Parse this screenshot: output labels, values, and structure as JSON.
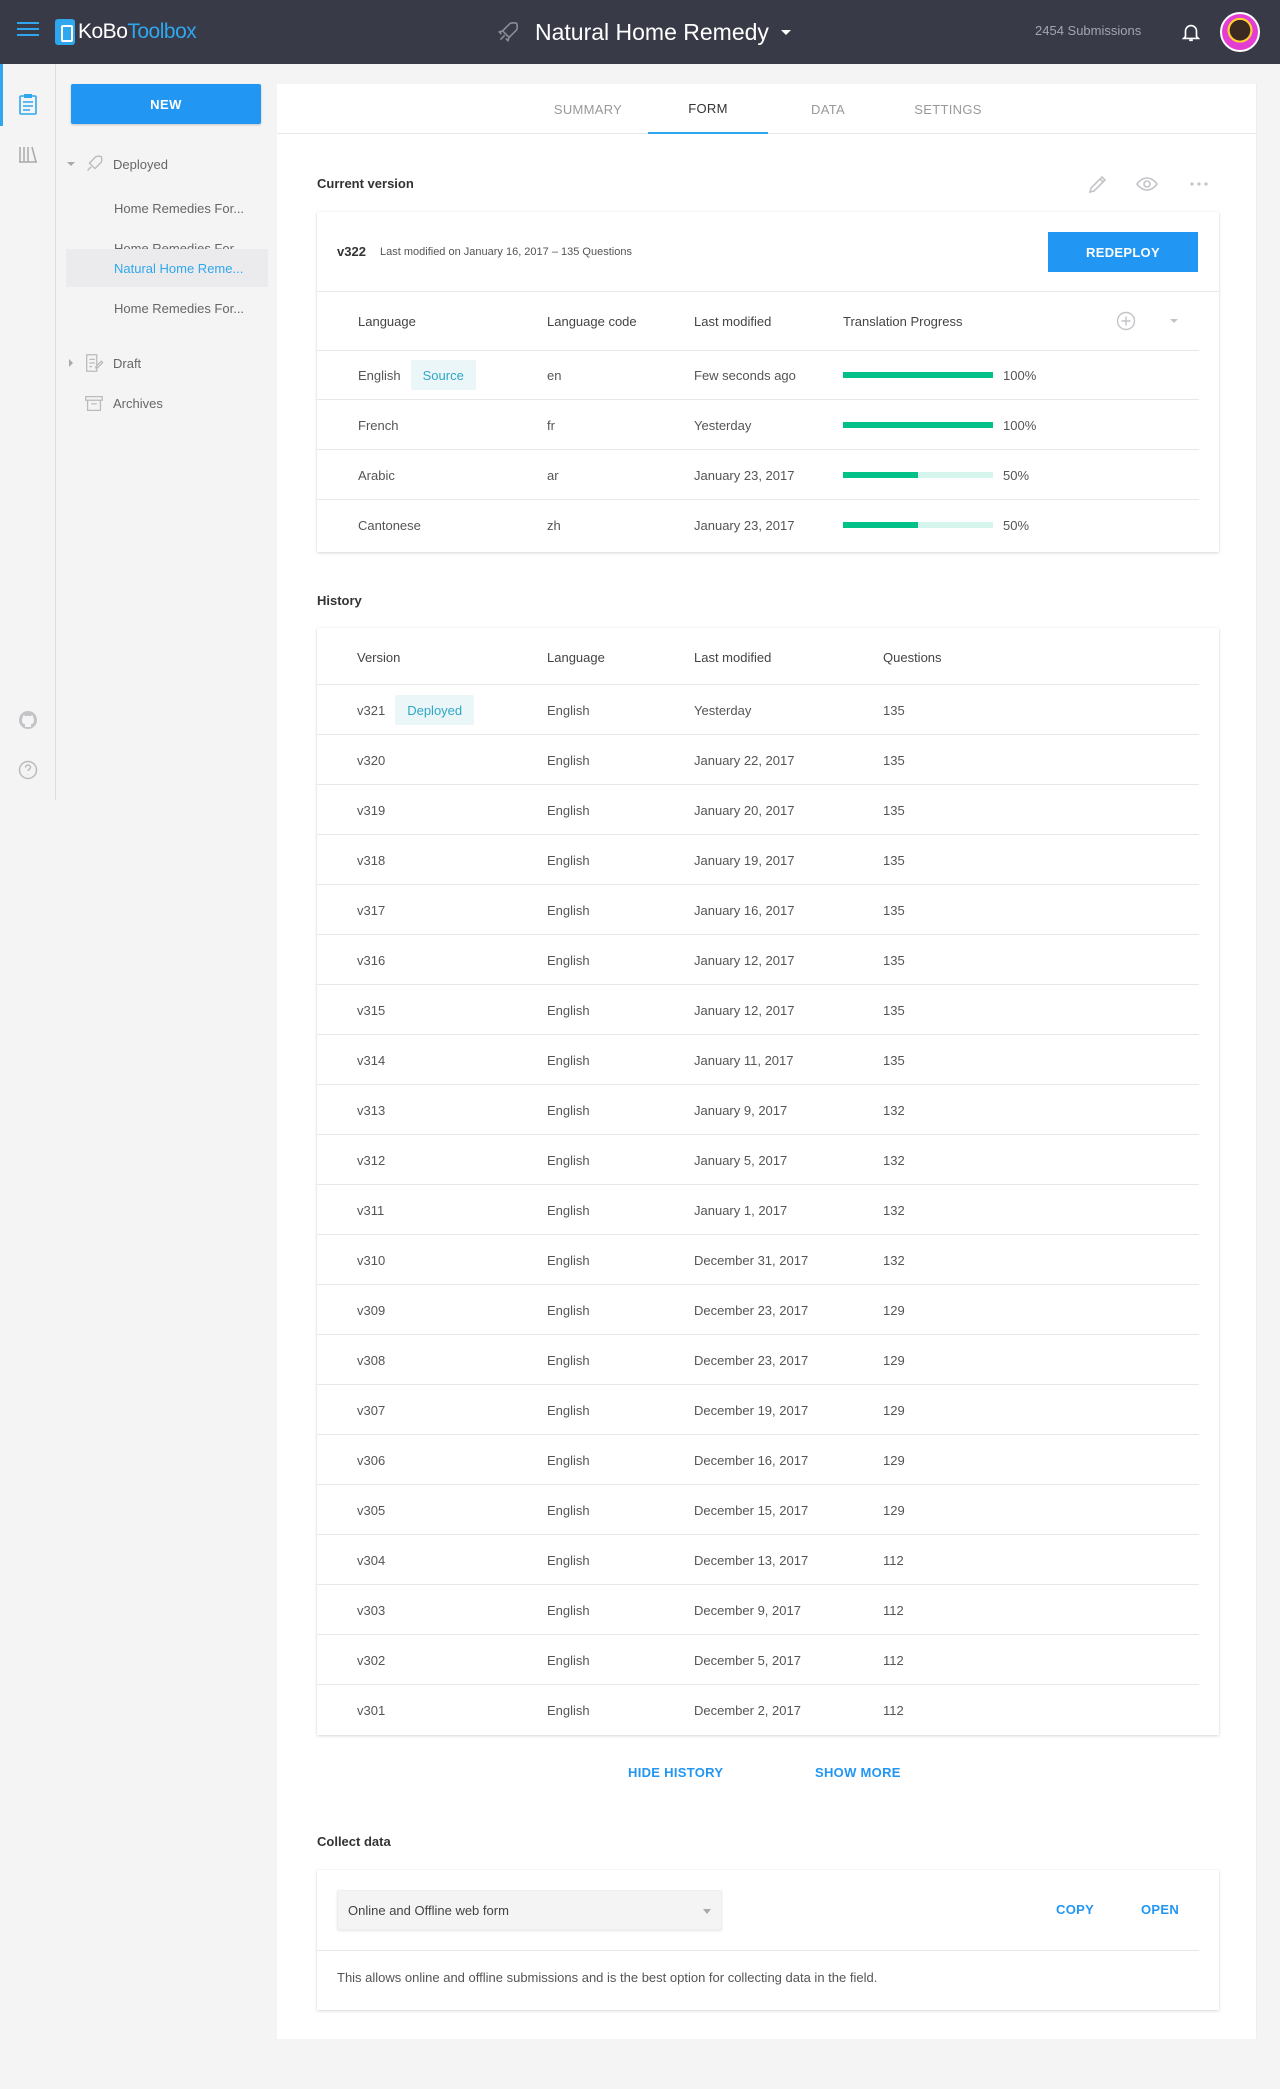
{
  "header": {
    "logo_kobo": "KoBo",
    "logo_toolbox": "Toolbox",
    "title": "Natural Home Remedy",
    "submissions": "2454 Submissions"
  },
  "sidebar": {
    "new_label": "NEW",
    "deployed_label": "Deployed",
    "deployed_items": [
      {
        "label": "Home Remedies For..."
      },
      {
        "label": "Home Remedies For..."
      },
      {
        "label": "Natural Home Reme..."
      },
      {
        "label": "Home Remedies For..."
      }
    ],
    "draft_label": "Draft",
    "archives_label": "Archives"
  },
  "tabs": [
    {
      "label": "SUMMARY"
    },
    {
      "label": "FORM"
    },
    {
      "label": "DATA"
    },
    {
      "label": "SETTINGS"
    }
  ],
  "current_version": {
    "section_title": "Current version",
    "version": "v322",
    "meta": "Last modified on January 16, 2017  –   135 Questions",
    "redeploy_label": "REDEPLOY",
    "headers": {
      "language": "Language",
      "code": "Language code",
      "modified": "Last modified",
      "progress": "Translation Progress"
    },
    "source_badge": "Source",
    "languages": [
      {
        "language": "English",
        "code": "en",
        "modified": "Few seconds ago",
        "progress": 1.0,
        "progress_label": "100%"
      },
      {
        "language": "French",
        "code": "fr",
        "modified": "Yesterday",
        "progress": 1.0,
        "progress_label": "100%"
      },
      {
        "language": "Arabic",
        "code": "ar",
        "modified": "January 23, 2017",
        "progress": 0.5,
        "progress_label": "50%"
      },
      {
        "language": "Cantonese",
        "code": "zh",
        "modified": "January 23, 2017",
        "progress": 0.5,
        "progress_label": "50%"
      }
    ]
  },
  "history": {
    "section_title": "History",
    "headers": {
      "version": "Version",
      "language": "Language",
      "modified": "Last modified",
      "questions": "Questions"
    },
    "deployed_badge": "Deployed",
    "rows": [
      {
        "version": "v321",
        "language": "English",
        "modified": "Yesterday",
        "questions": "135"
      },
      {
        "version": "v320",
        "language": "English",
        "modified": "January 22, 2017",
        "questions": "135"
      },
      {
        "version": "v319",
        "language": "English",
        "modified": "January 20, 2017",
        "questions": "135"
      },
      {
        "version": "v318",
        "language": "English",
        "modified": "January 19, 2017",
        "questions": "135"
      },
      {
        "version": "v317",
        "language": "English",
        "modified": "January 16, 2017",
        "questions": "135"
      },
      {
        "version": "v316",
        "language": "English",
        "modified": "January 12, 2017",
        "questions": "135"
      },
      {
        "version": "v315",
        "language": "English",
        "modified": "January 12, 2017",
        "questions": "135"
      },
      {
        "version": "v314",
        "language": "English",
        "modified": "January 11, 2017",
        "questions": "135"
      },
      {
        "version": "v313",
        "language": "English",
        "modified": "January 9, 2017",
        "questions": "132"
      },
      {
        "version": "v312",
        "language": "English",
        "modified": "January 5, 2017",
        "questions": "132"
      },
      {
        "version": "v311",
        "language": "English",
        "modified": "January 1, 2017",
        "questions": "132"
      },
      {
        "version": "v310",
        "language": "English",
        "modified": "December 31, 2017",
        "questions": "132"
      },
      {
        "version": "v309",
        "language": "English",
        "modified": "December 23, 2017",
        "questions": "129"
      },
      {
        "version": "v308",
        "language": "English",
        "modified": "December 23, 2017",
        "questions": "129"
      },
      {
        "version": "v307",
        "language": "English",
        "modified": "December 19, 2017",
        "questions": "129"
      },
      {
        "version": "v306",
        "language": "English",
        "modified": "December 16, 2017",
        "questions": "129"
      },
      {
        "version": "v305",
        "language": "English",
        "modified": "December 15, 2017",
        "questions": "129"
      },
      {
        "version": "v304",
        "language": "English",
        "modified": "December 13, 2017",
        "questions": "112"
      },
      {
        "version": "v303",
        "language": "English",
        "modified": "December 9, 2017",
        "questions": "112"
      },
      {
        "version": "v302",
        "language": "English",
        "modified": "December 5, 2017",
        "questions": "112"
      },
      {
        "version": "v301",
        "language": "English",
        "modified": "December 2, 2017",
        "questions": "112"
      }
    ],
    "hide_label": "HIDE HISTORY",
    "more_label": "SHOW MORE"
  },
  "collect": {
    "section_title": "Collect data",
    "selected": "Online and Offline web form",
    "copy_label": "COPY",
    "open_label": "OPEN",
    "description": "This allows online and offline submissions and is the best option for collecting data in the field."
  },
  "colors": {
    "accent": "#2196f3",
    "header_bg": "#383a47",
    "progress": "#00c187"
  }
}
